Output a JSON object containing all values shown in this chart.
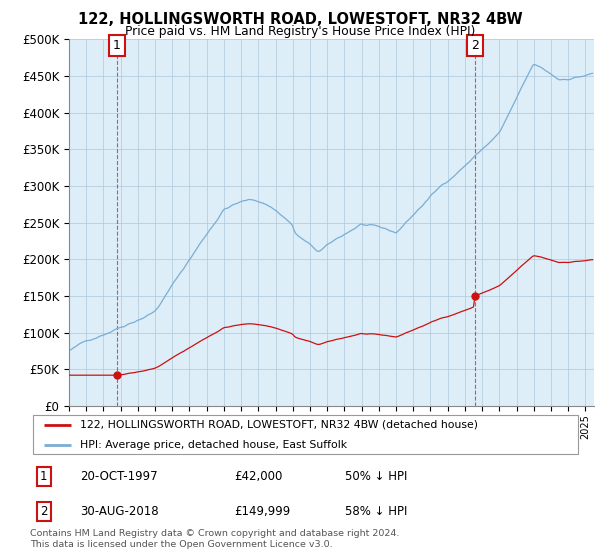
{
  "title": "122, HOLLINGSWORTH ROAD, LOWESTOFT, NR32 4BW",
  "subtitle": "Price paid vs. HM Land Registry's House Price Index (HPI)",
  "sale1_label": "20-OCT-1997",
  "sale1_price": 42000,
  "sale1_year": 1997.792,
  "sale1_pct": "50% ↓ HPI",
  "sale2_label": "30-AUG-2018",
  "sale2_price": 149999,
  "sale2_year": 2018.583,
  "sale2_pct": "58% ↓ HPI",
  "legend_house": "122, HOLLINGSWORTH ROAD, LOWESTOFT, NR32 4BW (detached house)",
  "legend_hpi": "HPI: Average price, detached house, East Suffolk",
  "footnote": "Contains HM Land Registry data © Crown copyright and database right 2024.\nThis data is licensed under the Open Government Licence v3.0.",
  "hpi_color": "#7aadd4",
  "sale_color": "#cc1111",
  "bg_color": "#ddeeff",
  "plot_bg": "#e8f0f8",
  "grid_color": "#aabbcc",
  "ylim": [
    0,
    500000
  ],
  "xlim": [
    1995.0,
    2025.5
  ],
  "yticks": [
    0,
    50000,
    100000,
    150000,
    200000,
    250000,
    300000,
    350000,
    400000,
    450000,
    500000
  ]
}
